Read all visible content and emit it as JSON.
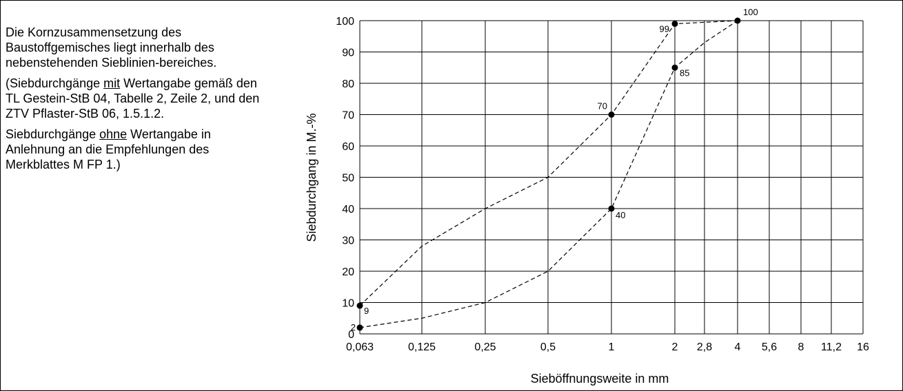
{
  "description": {
    "p1": "Die Kornzusammensetzung des Baustoffgemisches liegt innerhalb des nebenstehenden Sieblinien-bereiches.",
    "p2_a": "(Siebdurchgänge ",
    "p2_u": "mit",
    "p2_b": " Wertangabe gemäß den TL Gestein-StB 04, Tabelle 2, Zeile 2, und den ZTV Pflaster-StB 06, 1.5.1.2.",
    "p3_a": "Siebdurchgänge ",
    "p3_u": "ohne",
    "p3_b": " Wertangabe in Anlehnung an die Empfehlungen des Merkblattes M FP 1.)"
  },
  "chart_data": {
    "type": "line",
    "xlabel": "Sieböffnungsweite in mm",
    "ylabel": "Siebdurchgang in M.-%",
    "ylim": [
      0,
      100
    ],
    "y_ticks": [
      "0",
      "10",
      "20",
      "30",
      "40",
      "50",
      "60",
      "70",
      "80",
      "90",
      "100"
    ],
    "x_ticks": [
      "0,063",
      "0,125",
      "0,25",
      "0,5",
      "1",
      "2",
      "2,8",
      "4",
      "5,6",
      "8",
      "11,2",
      "16"
    ],
    "grid": true,
    "series": [
      {
        "line": "dashed",
        "x": [
          "0,063",
          "0,125",
          "0,25",
          "0,5",
          "1",
          "2",
          "4"
        ],
        "y": [
          9,
          28,
          40,
          50,
          70,
          99,
          100
        ],
        "marked_points": [
          {
            "x": "0,063",
            "y": 9,
            "label": "9"
          },
          {
            "x": "1",
            "y": 70,
            "label": "70"
          },
          {
            "x": "2",
            "y": 99,
            "label": "99"
          },
          {
            "x": "4",
            "y": 100,
            "label": "100"
          }
        ]
      },
      {
        "line": "dashed",
        "x": [
          "0,063",
          "0,125",
          "0,25",
          "0,5",
          "1",
          "2",
          "2,8",
          "4"
        ],
        "y": [
          2,
          5,
          10,
          20,
          40,
          85,
          93,
          100
        ],
        "marked_points": [
          {
            "x": "0,063",
            "y": 2,
            "label": "2"
          },
          {
            "x": "1",
            "y": 40,
            "label": "40"
          },
          {
            "x": "2",
            "y": 85,
            "label": "85"
          }
        ]
      }
    ]
  }
}
